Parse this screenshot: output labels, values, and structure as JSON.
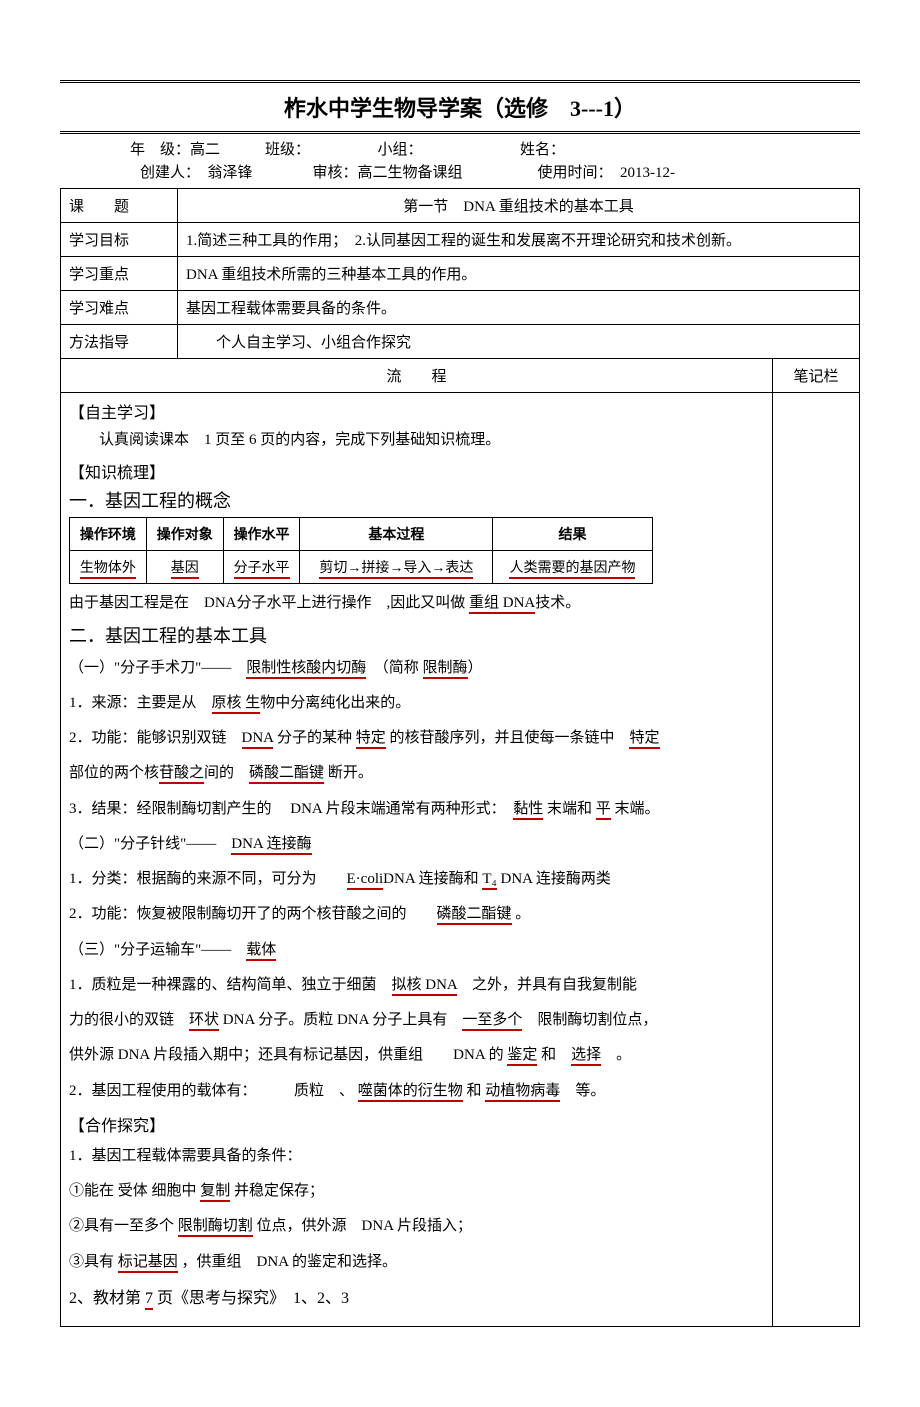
{
  "title_line": "柞水中学生物导学案（选修　3---1）",
  "meta1": "年　级：高二　　　班级：　　　　　小组：　　　　　　　姓名：",
  "meta2": "创建人：　翁泽锋　　　　审核：高二生物备课组　　　　　使用时间：　2013-12-",
  "row_ket_label": "课　　题",
  "row_ket_val": "第一节　DNA 重组技术的基本工具",
  "row_mb_label": "学习目标",
  "row_mb_val": "1.简述三种工具的作用；　2.认同基因工程的诞生和发展离不开理论研究和技术创新。",
  "row_zd_label": "学习重点",
  "row_zd_val": "DNA 重组技术所需的三种基本工具的作用。",
  "row_nd_label": "学习难点",
  "row_nd_val": "基因工程载体需要具备的条件。",
  "row_ff_label": "方法指导",
  "row_ff_val": "　　个人自主学习、小组合作探究",
  "flow_label": "流　　程",
  "notes_label": "笔记栏",
  "s_zzxx": "【自主学习】",
  "s_zzxx_p": "认真阅读课本　1 页至 6 页的内容，完成下列基础知识梳理。",
  "s_zssl": "【知识梳理】",
  "h1_1": "一．基因工程的概念",
  "inner_headers": [
    "操作环境",
    "操作对象",
    "操作水平",
    "基本过程",
    "结果"
  ],
  "inner_row": [
    "生物体外",
    "基因",
    "分子水平",
    "剪切→拼接→导入→表达",
    "人类需要的基因产物"
  ],
  "p_after_table_pre": "由于基因工程是在　DNA分子水平上进行操作　,因此又叫做 ",
  "p_after_table_u": "重组 DNA",
  "p_after_table_suf": "技术。",
  "h1_2": "二．基因工程的基本工具",
  "p2_1_a": "（一）\"分子手术刀\"——　",
  "p2_1_u1": "限制性核酸内切酶",
  "p2_1_b": "　（简称 ",
  "p2_1_u2": "限制酶",
  "p2_1_c": "）",
  "p2_2_a": "1．来源：主要是从　",
  "p2_2_u": "原核 生",
  "p2_2_b": "物中分离纯化出来的。",
  "p2_3_a": "2．功能：能够识别双链　",
  "p2_3_u1": "DNA",
  "p2_3_b": " 分子的某种 ",
  "p2_3_u2": "特定",
  "p2_3_c": " 的核苷酸序列，并且使每一条链中　",
  "p2_3_u3": "特定",
  "p2_4_a": "部位的两个核",
  "p2_4_u1": "苷酸之",
  "p2_4_b": "间的　",
  "p2_4_u2": "磷酸二酯键",
  "p2_4_c": " 断开。",
  "p2_5_a": "3．结果：经限制酶切割产生的　 DNA 片段末端通常有两种形式：　",
  "p2_5_u1": "黏性",
  "p2_5_b": " 末端和 ",
  "p2_5_u2": "平",
  "p2_5_c": " 末端。",
  "p3_1_a": "（二）\"分子针线\"——　",
  "p3_1_u": "DNA 连接酶",
  "p3_2_a": "1．分类：根据酶的来源不同，可分为　　",
  "p3_2_u1": "E·coli",
  "p3_2_b": "DNA 连接酶和 ",
  "p3_2_u2": "T₄",
  "p3_2_c": " DNA 连接酶两类",
  "p3_3_a": "2．功能：恢复被限制酶切开了的两个核苷酸之间的　　",
  "p3_3_u": "磷酸二酯键",
  "p3_3_b": " 。",
  "p4_1_a": "（三）\"分子运输车\"——　",
  "p4_1_u": "载体",
  "p4_2_a": "1．质粒是一种裸露的、结构简单、独立于细菌　",
  "p4_2_u1": "拟核 DNA",
  "p4_2_b": "　之外，并具有自我复制能",
  "p4_3_a": "力的很小的双链　",
  "p4_3_u1": "环状",
  "p4_3_b": " DNA 分子。质粒 DNA 分子上具有　",
  "p4_3_u2": "一至多个",
  "p4_3_c": "　限制酶切割位点，",
  "p4_4_a": "供外源 DNA 片段插入期中；还具有标记基因，供重组　　DNA 的 ",
  "p4_4_u1": "鉴定",
  "p4_4_b": " 和　",
  "p4_4_u2": "选择",
  "p4_4_c": "　。",
  "p4_5_a": "2．基因工程使用的载体有：　　　质粒　、 ",
  "p4_5_u1": "噬菌体的衍生物",
  "p4_5_b": " 和 ",
  "p4_5_u2": "动植物病毒",
  "p4_5_c": "　等。",
  "s_hztj": "【合作探究】",
  "hz_1": "1．基因工程载体需要具备的条件：",
  "hz_2_a": "①能在 受体 细胞中 ",
  "hz_2_u": "复制",
  "hz_2_b": " 并稳定保存；",
  "hz_3_a": "②具有一至多个 ",
  "hz_3_u": "限制酶切割",
  "hz_3_b": " 位点，供外源　DNA 片段插入；",
  "hz_4_a": "③具有 ",
  "hz_4_u": "标记基因",
  "hz_4_b": " ，供重组　DNA 的鉴定和选择。",
  "last_a": "2、教材第 ",
  "last_u": "7",
  "last_b": " 页《思考与探究》　1、2、3",
  "colors": {
    "text": "#000000",
    "underline": "#c00000",
    "bg": "#ffffff"
  }
}
